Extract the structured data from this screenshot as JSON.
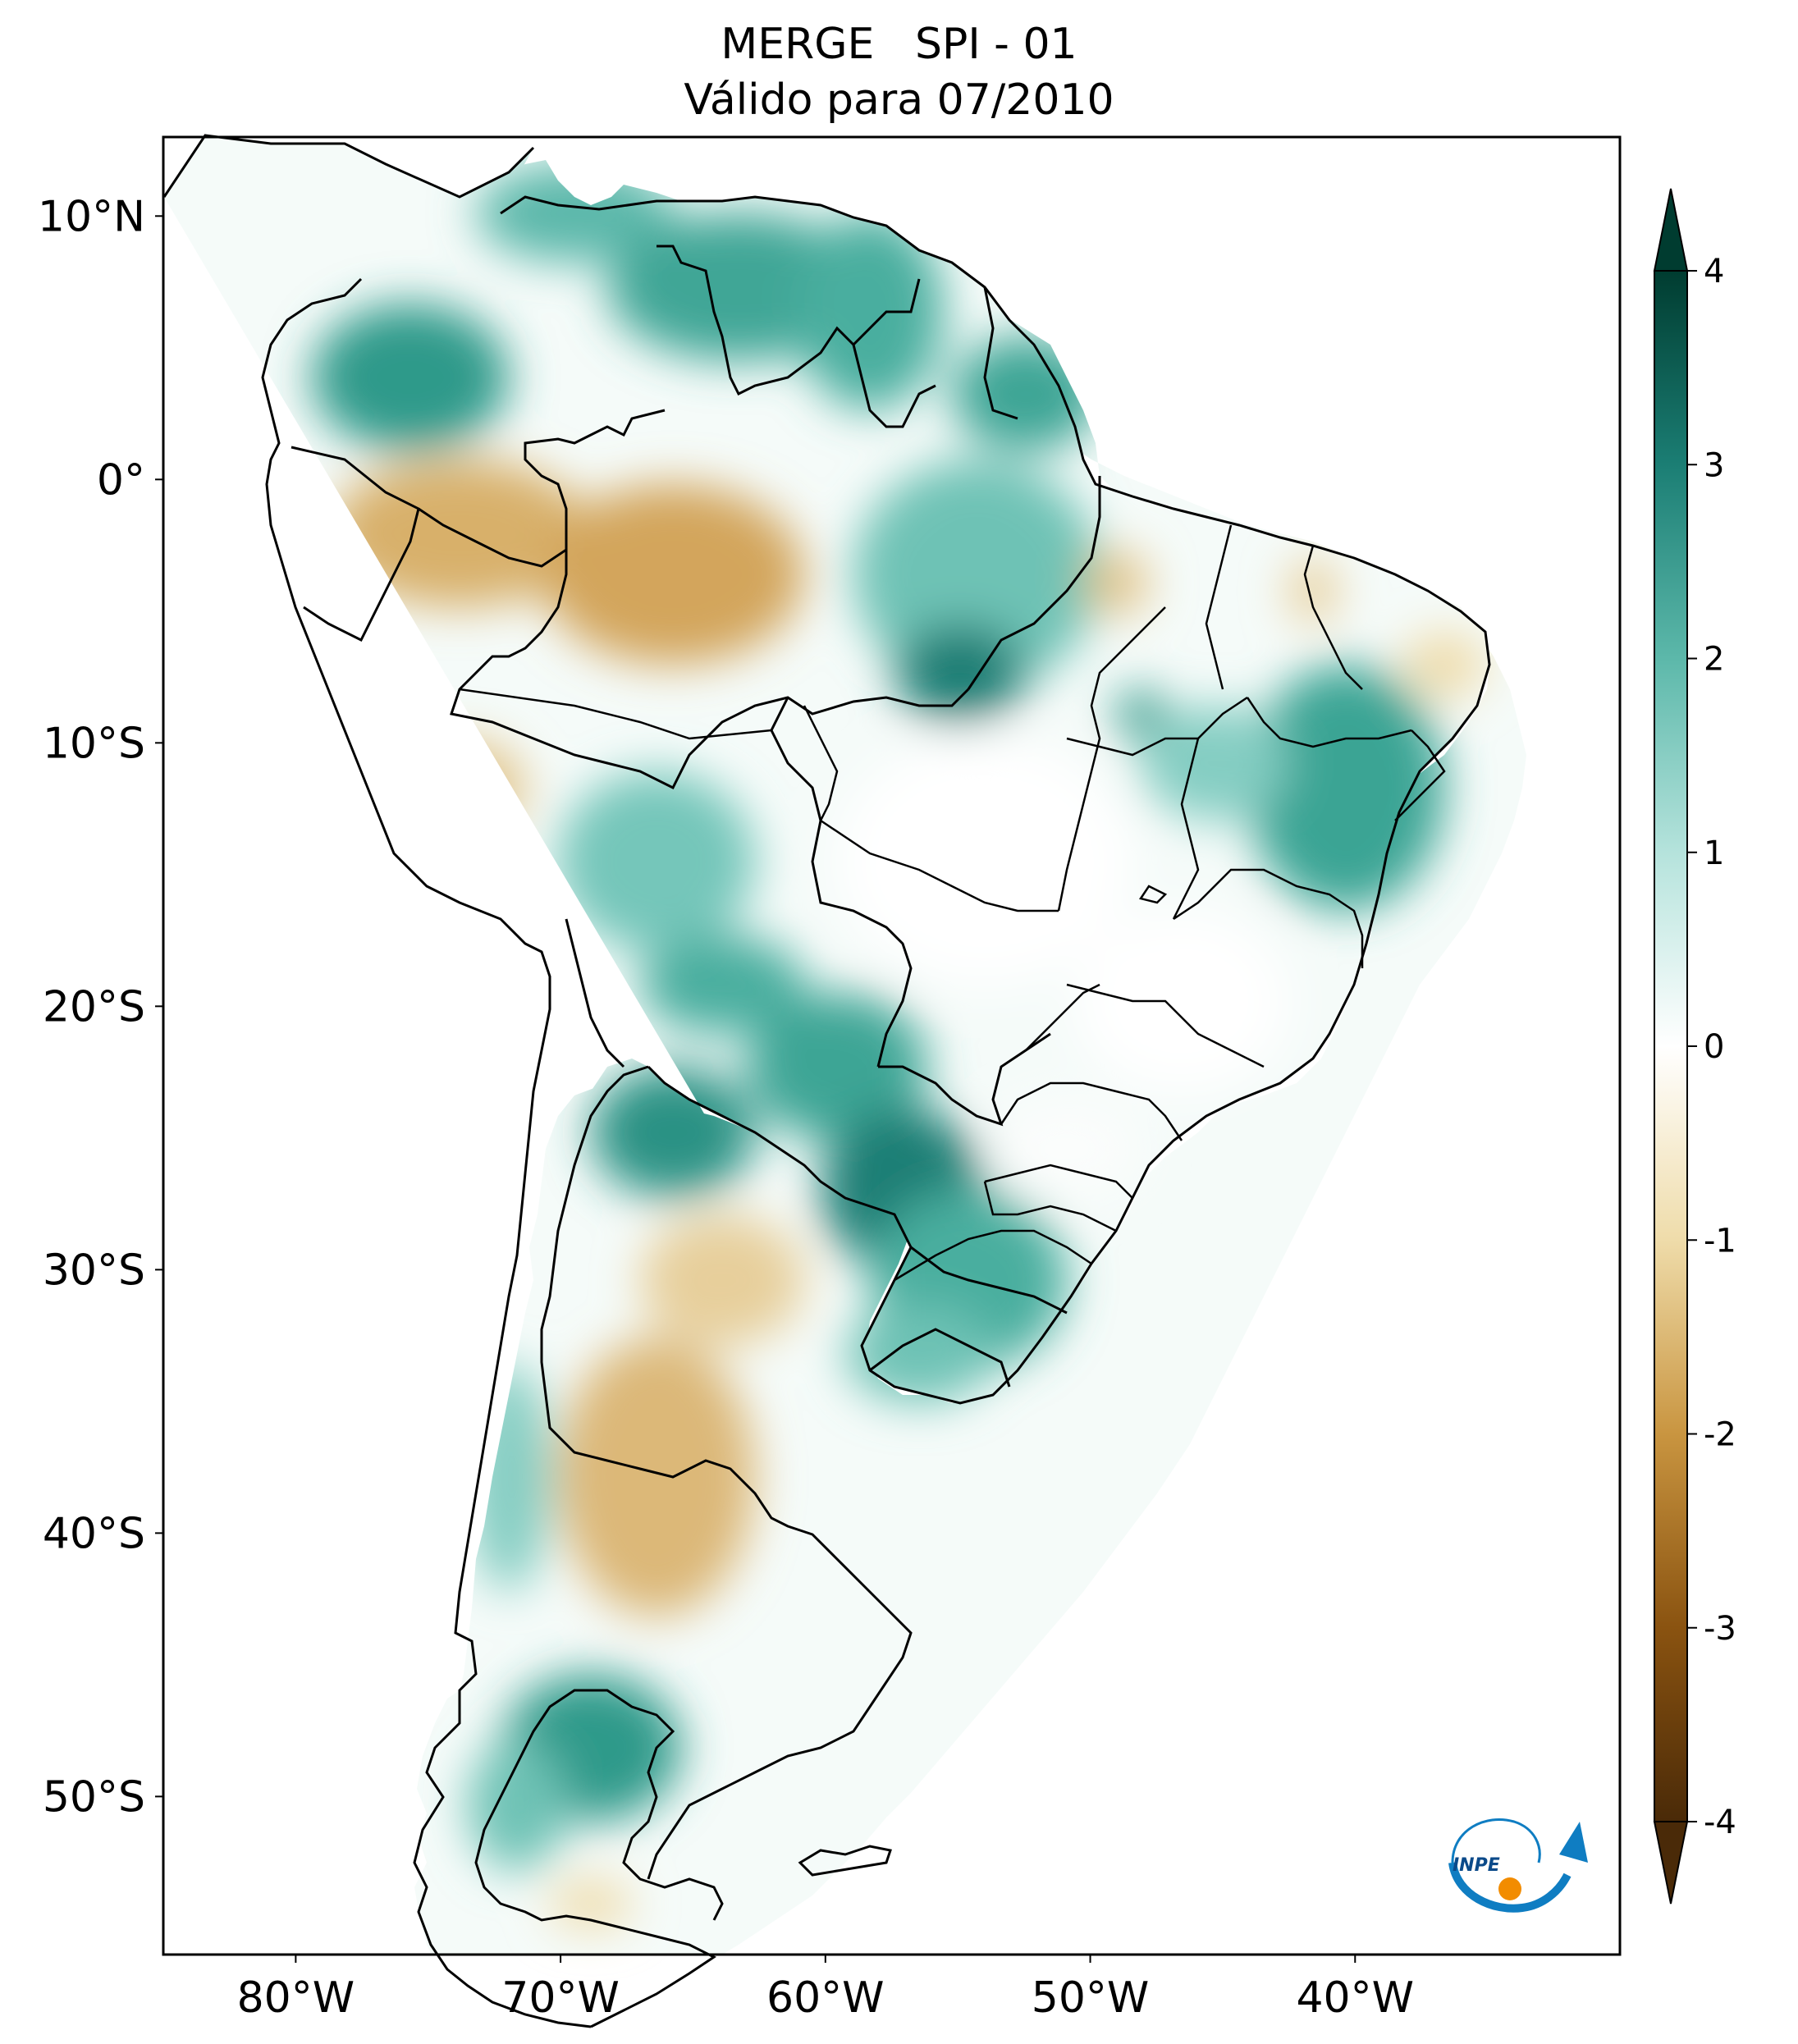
{
  "title": {
    "line1": "MERGE   SPI - 01",
    "line2": "Válido para 07/2010"
  },
  "map": {
    "lat_labels": [
      {
        "label": "10°N",
        "lat": 10
      },
      {
        "label": "0°",
        "lat": 0
      },
      {
        "label": "10°S",
        "lat": -10
      },
      {
        "label": "20°S",
        "lat": -20
      },
      {
        "label": "30°S",
        "lat": -30
      },
      {
        "label": "40°S",
        "lat": -40
      },
      {
        "label": "50°S",
        "lat": -50
      }
    ],
    "lon_labels": [
      {
        "label": "80°W",
        "lon": -80
      },
      {
        "label": "70°W",
        "lon": -70
      },
      {
        "label": "60°W",
        "lon": -60
      },
      {
        "label": "50°W",
        "lon": -50
      },
      {
        "label": "40°W",
        "lon": -40
      }
    ],
    "extent": {
      "lon": [
        -85,
        -30
      ],
      "lat": [
        -56,
        13
      ]
    }
  },
  "colorbar": {
    "ticks": [
      {
        "label": "4",
        "value": 4
      },
      {
        "label": "3",
        "value": 3
      },
      {
        "label": "2",
        "value": 2
      },
      {
        "label": "1",
        "value": 1
      },
      {
        "label": "0",
        "value": 0
      },
      {
        "label": "-1",
        "value": -1
      },
      {
        "label": "-2",
        "value": -2
      },
      {
        "label": "-3",
        "value": -3
      },
      {
        "label": "-4",
        "value": -4
      }
    ],
    "range": [
      -4,
      4
    ],
    "colors": {
      "dry_extreme": "#4a2a08",
      "dry_strong": "#8a5310",
      "dry_moderate": "#c99540",
      "dry_mild": "#efdcaa",
      "neutral": "#ffffff",
      "wet_mild": "#b5e3dc",
      "wet_moderate": "#5cb8aa",
      "wet_strong": "#1b7e74",
      "wet_extreme": "#003c30"
    }
  },
  "logo": {
    "text": "INPE"
  }
}
